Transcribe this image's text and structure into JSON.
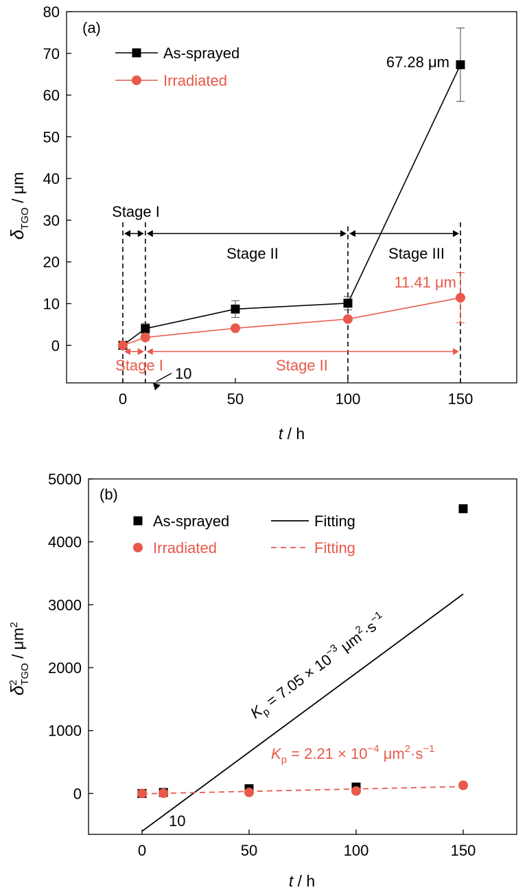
{
  "colors": {
    "as_sprayed": "#000000",
    "irradiated": "#e8594a"
  },
  "chart_data": [
    {
      "panel": "(a)",
      "type": "line",
      "xlabel_italic": "t",
      "xlabel_unit": " / h",
      "ylabel_symbol": "δ",
      "ylabel_sub": "TGO",
      "ylabel_unit": " / μm",
      "xlim": [
        -25,
        175
      ],
      "ylim": [
        -9,
        80
      ],
      "xticks": [
        0,
        50,
        100,
        150
      ],
      "yticks": [
        0,
        10,
        20,
        30,
        40,
        50,
        60,
        70,
        80
      ],
      "grid": false,
      "legend_position": "top-left",
      "series": [
        {
          "name": "As-sprayed",
          "marker": "square",
          "x": [
            0,
            10,
            50,
            100,
            150
          ],
          "y": [
            0,
            4.0,
            8.7,
            10.1,
            67.28
          ],
          "err": [
            0.3,
            1.2,
            2.0,
            1.6,
            8.8
          ]
        },
        {
          "name": "Irradiated",
          "marker": "circle",
          "x": [
            0,
            10,
            50,
            100,
            150
          ],
          "y": [
            0,
            1.9,
            4.1,
            6.3,
            11.41
          ],
          "err": [
            0,
            0,
            0,
            0,
            6.0
          ]
        }
      ],
      "annotations": {
        "peak_as_sprayed": "67.28 μm",
        "peak_irradiated": "11.41 μm",
        "black_stage_1": "Stage I",
        "black_stage_2": "Stage II",
        "black_stage_3": "Stage III",
        "red_stage_1": "Stage I",
        "red_stage_2": "Stage II",
        "ten_label": "10"
      },
      "stage_boundaries": [
        0,
        10,
        100,
        150
      ]
    },
    {
      "panel": "(b)",
      "type": "scatter",
      "xlabel_italic": "t",
      "xlabel_unit": " / h",
      "ylabel_symbol": "δ",
      "ylabel_sup": "2",
      "ylabel_sub": "TGO",
      "ylabel_unit": " / μm",
      "ylabel_unit_sup": "2",
      "xlim": [
        -25,
        175
      ],
      "ylim": [
        -650,
        5000
      ],
      "xticks": [
        0,
        50,
        100,
        150
      ],
      "yticks": [
        0,
        1000,
        2000,
        3000,
        4000,
        5000
      ],
      "grid": false,
      "legend_position": "top-left",
      "series": [
        {
          "name": "As-sprayed",
          "marker": "square",
          "x": [
            0,
            10,
            50,
            100,
            150
          ],
          "y": [
            0,
            16,
            76,
            102,
            4527
          ]
        },
        {
          "name": "Irradiated",
          "marker": "circle",
          "x": [
            0,
            10,
            50,
            100,
            150
          ],
          "y": [
            0,
            4,
            17,
            40,
            130
          ]
        }
      ],
      "fits": [
        {
          "name": "Fitting",
          "style": "solid",
          "x": [
            0,
            150
          ],
          "y": [
            -600,
            3170
          ]
        },
        {
          "name": "Fitting",
          "style": "dashed",
          "x": [
            0,
            150
          ],
          "y": [
            -5,
            110
          ]
        }
      ],
      "annotations": {
        "kp_as_sprayed": {
          "symbol": "K",
          "sub": "p",
          "value": " = 7.05 × 10",
          "exp": "−3",
          "unit_pre": " μm",
          "unit_sup": "2",
          "unit_post": "·s",
          "unit_exp": "−1"
        },
        "kp_irradiated": {
          "symbol": "K",
          "sub": "p",
          "value": " =  2.21 × 10",
          "exp": "−4",
          "unit_pre": " μm",
          "unit_sup": "2",
          "unit_post": "·s",
          "unit_exp": "−1"
        },
        "ten_label": "10"
      }
    }
  ]
}
